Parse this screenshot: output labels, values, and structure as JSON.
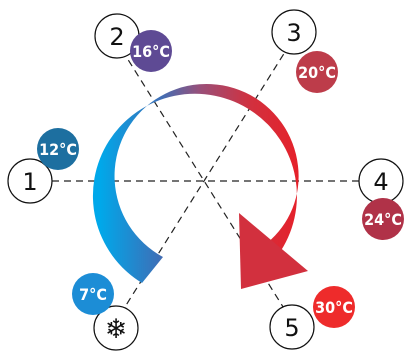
{
  "stages": [
    {
      "number": "1",
      "temperature": "12°C"
    },
    {
      "number": "2",
      "temperature": "16°C"
    },
    {
      "number": "3",
      "temperature": "20°C"
    },
    {
      "number": "4",
      "temperature": "24°C"
    },
    {
      "number": "5",
      "temperature": "30°C"
    }
  ],
  "cold_stage": {
    "symbol": "❄",
    "temperature": "7°C"
  },
  "colors": {
    "cold": "#0a9ee0",
    "cool": "#5b4a9a",
    "mid": "#b43a4a",
    "hot": "#e8202a",
    "badge_12": "#1d6fa0",
    "badge_16": "#5e4a94",
    "badge_20": "#bd3c4a",
    "badge_24": "#b03248",
    "badge_30": "#ee2b2b",
    "badge_7": "#1c8dd6"
  }
}
